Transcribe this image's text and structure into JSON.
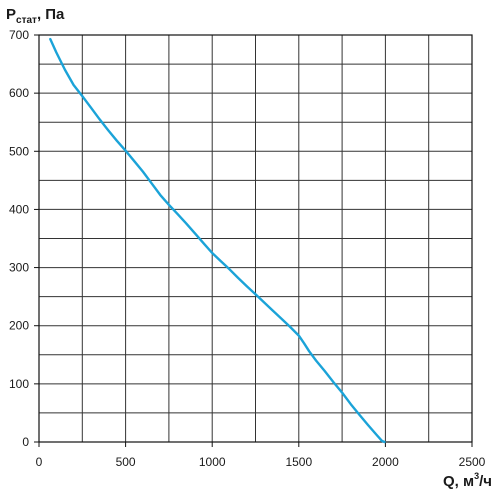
{
  "chart_data": {
    "type": "line",
    "title": "",
    "ylabel": {
      "main": "P",
      "sub": "стат",
      "rest": ", Па"
    },
    "xlabel": {
      "main": "Q, м",
      "sup": "3",
      "rest": "/ч"
    },
    "xlim": [
      0,
      2500
    ],
    "ylim": [
      0,
      700
    ],
    "x_ticks": [
      0,
      500,
      1000,
      1500,
      2000,
      2500
    ],
    "y_ticks": [
      0,
      100,
      200,
      300,
      400,
      500,
      600,
      700
    ],
    "x_minor_step": 250,
    "y_minor_step": 50,
    "grid": true,
    "series": [
      {
        "color": "#1ba3d8",
        "x": [
          65,
          100,
          150,
          200,
          250,
          300,
          350,
          400,
          450,
          500,
          550,
          600,
          650,
          700,
          750,
          800,
          850,
          900,
          950,
          1000,
          1050,
          1100,
          1150,
          1200,
          1250,
          1300,
          1350,
          1400,
          1450,
          1500,
          1530,
          1560,
          1600,
          1650,
          1700,
          1750,
          1800,
          1850,
          1900,
          1950,
          1980,
          1995
        ],
        "y": [
          693,
          670,
          640,
          614,
          595,
          575,
          555,
          536,
          518,
          501,
          483,
          465,
          445,
          425,
          408,
          392,
          376,
          359,
          342,
          325,
          311,
          297,
          282,
          268,
          254,
          240,
          226,
          212,
          198,
          183,
          170,
          156,
          140,
          122,
          103,
          85,
          65,
          47,
          29,
          12,
          2,
          0
        ]
      }
    ]
  }
}
